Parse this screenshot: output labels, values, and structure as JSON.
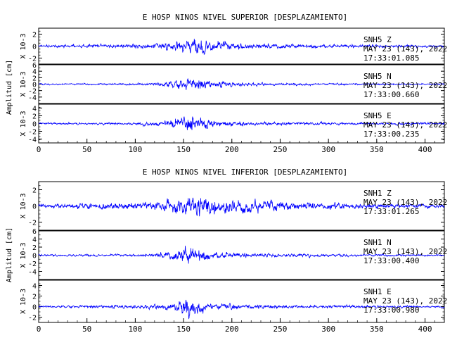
{
  "colors": {
    "trace": "#0000ff",
    "axis": "#000000",
    "background": "#ffffff"
  },
  "chart_data": [
    {
      "type": "line",
      "title": "E HOSP NINOS NIVEL SUPERIOR [DESPLAZAMIENTO]",
      "ylabel": "Amplitud [cm]",
      "xlim": [
        0,
        420
      ],
      "x_ticks": [
        "0",
        "50",
        "100",
        "150",
        "200",
        "250",
        "300",
        "350",
        "400"
      ],
      "panels": [
        {
          "scale_label": "X 10-3",
          "station": "SNH5",
          "component": "Z",
          "date": "MAY 23 (143), 2022",
          "time": "17:33:01.085",
          "ylim": [
            -3,
            3
          ],
          "y_ticks": [
            "-2",
            "0",
            "2"
          ],
          "envelope": {
            "x": [
              0,
              60,
              120,
              140,
              155,
              165,
              175,
              190,
              220,
              280,
              360,
              420
            ],
            "amplitude": [
              0.4,
              0.6,
              0.8,
              1.4,
              2.4,
              2.9,
              2.6,
              1.6,
              1.0,
              0.7,
              0.5,
              0.4
            ]
          }
        },
        {
          "scale_label": "X 10-3",
          "station": "SNH5",
          "component": "N",
          "date": "MAY 23 (143), 2022",
          "time": "17:33:00.660",
          "ylim": [
            -6,
            6
          ],
          "y_ticks": [
            "-4",
            "-2",
            "0",
            "2",
            "4",
            "6"
          ],
          "envelope": {
            "x": [
              0,
              80,
              120,
              140,
              155,
              165,
              180,
              220,
              300,
              420
            ],
            "amplitude": [
              0.5,
              0.6,
              1.0,
              2.5,
              4.2,
              3.6,
              2.2,
              1.1,
              0.7,
              0.5
            ]
          }
        },
        {
          "scale_label": "X 10-3",
          "station": "SNH5",
          "component": "E",
          "date": "MAY 23 (143), 2022",
          "time": "17:33:00.235",
          "ylim": [
            -5,
            5
          ],
          "y_ticks": [
            "-4",
            "-2",
            "0",
            "2",
            "4"
          ],
          "envelope": {
            "x": [
              0,
              80,
              120,
              140,
              155,
              165,
              180,
              220,
              300,
              420
            ],
            "amplitude": [
              0.5,
              0.6,
              1.0,
              2.4,
              4.3,
              3.8,
              2.0,
              1.0,
              0.7,
              0.6
            ]
          }
        }
      ]
    },
    {
      "type": "line",
      "title": "E HOSP NINOS NIVEL INFERIOR [DESPLAZAMIENTO]",
      "ylabel": "Amplitud [cm]",
      "xlim": [
        0,
        420
      ],
      "x_ticks": [
        "0",
        "50",
        "100",
        "150",
        "200",
        "250",
        "300",
        "350",
        "400"
      ],
      "panels": [
        {
          "scale_label": "X 10-3",
          "station": "SNH1",
          "component": "Z",
          "date": "MAY 23 (143), 2022",
          "time": "17:33:01.265",
          "ylim": [
            -3,
            3
          ],
          "y_ticks": [
            "-2",
            "0",
            "2"
          ],
          "envelope": {
            "x": [
              0,
              60,
              120,
              140,
              160,
              175,
              200,
              230,
              280,
              360,
              420
            ],
            "amplitude": [
              0.5,
              0.7,
              1.0,
              1.8,
              3.0,
              2.6,
              1.8,
              1.4,
              0.9,
              0.6,
              0.5
            ]
          }
        },
        {
          "scale_label": "X 10-3",
          "station": "SNH1",
          "component": "N",
          "date": "MAY 23 (143), 2022",
          "time": "17:33:00.400",
          "ylim": [
            -6,
            6
          ],
          "y_ticks": [
            "-4",
            "-2",
            "0",
            "2",
            "4",
            "6"
          ],
          "envelope": {
            "x": [
              0,
              80,
              120,
              140,
              155,
              165,
              180,
              220,
              300,
              420
            ],
            "amplitude": [
              0.5,
              0.6,
              1.0,
              2.5,
              5.0,
              3.8,
              2.0,
              1.0,
              0.7,
              0.5
            ]
          }
        },
        {
          "scale_label": "X 10-3",
          "station": "SNH1",
          "component": "E",
          "date": "MAY 23 (143), 2022",
          "time": "17:33:00.980",
          "ylim": [
            -3,
            5
          ],
          "y_ticks": [
            "-2",
            "0",
            "2",
            "4"
          ],
          "envelope": {
            "x": [
              0,
              80,
              120,
              140,
              150,
              160,
              175,
              210,
              300,
              420
            ],
            "amplitude": [
              0.4,
              0.6,
              0.9,
              1.8,
              4.6,
              3.2,
              1.8,
              0.9,
              0.6,
              0.4
            ]
          }
        }
      ]
    }
  ]
}
